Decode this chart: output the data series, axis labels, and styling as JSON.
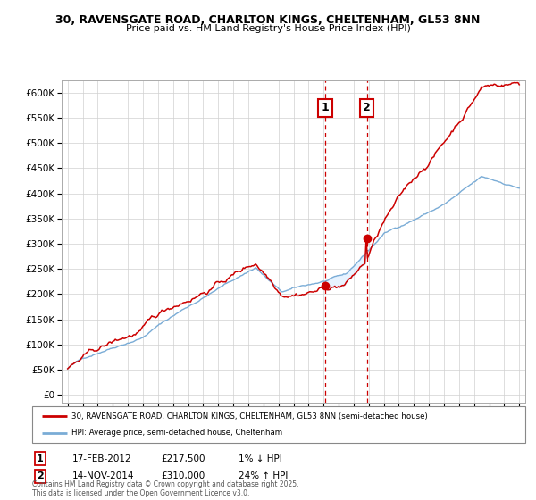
{
  "title_line1": "30, RAVENSGATE ROAD, CHARLTON KINGS, CHELTENHAM, GL53 8NN",
  "title_line2": "Price paid vs. HM Land Registry's House Price Index (HPI)",
  "hpi_color": "#7aacd6",
  "price_color": "#cc0000",
  "vline_color": "#cc0000",
  "shade_color": "#ddeeff",
  "transactions": [
    {
      "id": 1,
      "date_num": 2012.12,
      "price": 217500,
      "label": "1",
      "date_str": "17-FEB-2012",
      "price_str": "£217,500",
      "pct": "1%",
      "dir": "↓"
    },
    {
      "id": 2,
      "date_num": 2014.87,
      "price": 310000,
      "label": "2",
      "date_str": "14-NOV-2014",
      "price_str": "£310,000",
      "pct": "24%",
      "dir": "↑"
    }
  ],
  "legend_line1": "30, RAVENSGATE ROAD, CHARLTON KINGS, CHELTENHAM, GL53 8NN (semi-detached house)",
  "legend_line2": "HPI: Average price, semi-detached house, Cheltenham",
  "footer": "Contains HM Land Registry data © Crown copyright and database right 2025.\nThis data is licensed under the Open Government Licence v3.0.",
  "yticks": [
    0,
    50000,
    100000,
    150000,
    200000,
    250000,
    300000,
    350000,
    400000,
    450000,
    500000,
    550000,
    600000
  ],
  "ylim": [
    -15000,
    625000
  ],
  "xlim_start": 1994.6,
  "xlim_end": 2025.4,
  "xticks": [
    1995,
    1996,
    1997,
    1998,
    1999,
    2000,
    2001,
    2002,
    2003,
    2004,
    2005,
    2006,
    2007,
    2008,
    2009,
    2010,
    2011,
    2012,
    2013,
    2014,
    2015,
    2016,
    2017,
    2018,
    2019,
    2020,
    2021,
    2022,
    2023,
    2024,
    2025
  ]
}
